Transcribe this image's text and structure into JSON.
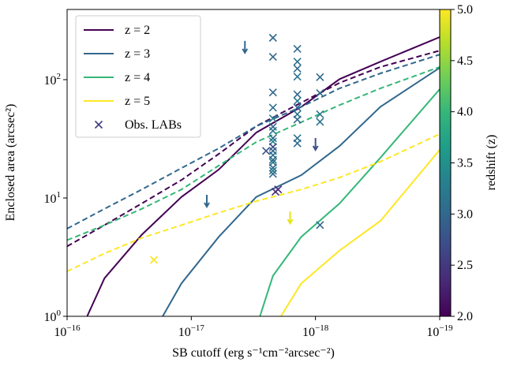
{
  "chart_data": {
    "type": "line",
    "xlabel": "SB cutoff (erg s⁻¹cm⁻²arcsec⁻²)",
    "ylabel": "Enclosed area (arcsec²)",
    "xscale": "log",
    "yscale": "log",
    "xlim": [
      1e-16,
      1e-19
    ],
    "ylim": [
      1,
      392
    ],
    "xticks": [
      {
        "value": 1e-16,
        "label": "10",
        "exponent": "−16"
      },
      {
        "value": 1e-17,
        "label": "10",
        "exponent": "−17"
      },
      {
        "value": 1e-18,
        "label": "10",
        "exponent": "−18"
      },
      {
        "value": 1e-19,
        "label": "10",
        "exponent": "−19"
      }
    ],
    "yticks": [
      {
        "value": 1,
        "label": "10",
        "exponent": "0"
      },
      {
        "value": 10,
        "label": "10",
        "exponent": "1"
      },
      {
        "value": 100,
        "label": "10",
        "exponent": "2"
      }
    ],
    "legend": "upper left",
    "series": [
      {
        "name": "z = 2",
        "color": "#440154",
        "style": "solid",
        "x": [
          6.9e-17,
          5e-17,
          2.5e-17,
          1.2e-17,
          6e-18,
          3e-18,
          1.3e-18,
          6.4e-19,
          3e-19,
          1e-19
        ],
        "values": [
          1,
          2.1,
          4.9,
          10.2,
          17.4,
          35.7,
          59,
          101,
          142,
          229
        ]
      },
      {
        "name": "z = 3",
        "color": "#31688e",
        "style": "solid",
        "x": [
          1.7e-17,
          1.2e-17,
          6e-18,
          3e-18,
          1.3e-18,
          6.4e-19,
          3e-19,
          1e-19
        ],
        "values": [
          1,
          1.9,
          4.7,
          10.2,
          15.6,
          27.5,
          59,
          126
        ]
      },
      {
        "name": "z = 4",
        "color": "#35b779",
        "style": "solid",
        "x": [
          2.8e-18,
          2.2e-18,
          1.3e-18,
          6.4e-19,
          3e-19,
          1e-19
        ],
        "values": [
          1,
          2.2,
          4.7,
          9.0,
          21.9,
          83
        ]
      },
      {
        "name": "z = 5",
        "color": "#fde725",
        "style": "solid",
        "x": [
          1.9e-18,
          1.3e-18,
          6.4e-19,
          3e-19,
          1e-19
        ],
        "values": [
          1,
          1.9,
          3.6,
          6.4,
          25.5
        ]
      },
      {
        "color": "#440154",
        "style": "dashed",
        "x": [
          1e-16,
          5e-17,
          2.5e-17,
          1.2e-17,
          6e-18,
          3e-18,
          1.3e-18,
          6.4e-19,
          3e-19,
          1e-19
        ],
        "values": [
          3.9,
          5.9,
          9.0,
          14.2,
          23.6,
          40.4,
          64,
          94,
          128,
          176
        ]
      },
      {
        "color": "#31688e",
        "style": "dashed",
        "x": [
          1e-16,
          5e-17,
          2.5e-17,
          1.2e-17,
          6e-18,
          3e-18,
          1.3e-18,
          6.4e-19,
          3e-19,
          1e-19
        ],
        "values": [
          5.5,
          8.1,
          11.8,
          17.9,
          26.3,
          40.4,
          59,
          84.5,
          113,
          163
        ]
      },
      {
        "color": "#35b779",
        "style": "dashed",
        "x": [
          1e-16,
          5e-17,
          2.5e-17,
          1.2e-17,
          6e-18,
          3e-18,
          1.3e-18,
          6.4e-19,
          3e-19,
          1e-19
        ],
        "values": [
          4.4,
          5.9,
          8.1,
          11.8,
          18.8,
          29.7,
          43.7,
          61,
          84.5,
          128
        ]
      },
      {
        "color": "#fde725",
        "style": "dashed",
        "x": [
          1e-16,
          5e-17,
          2.5e-17,
          1.2e-17,
          6e-18,
          3e-18,
          1.3e-18,
          6.4e-19,
          3e-19,
          1e-19
        ],
        "values": [
          2.4,
          3.4,
          4.6,
          5.9,
          7.5,
          9.4,
          11.8,
          14.9,
          20.3,
          34.7
        ]
      }
    ],
    "scatter": {
      "name": "Obs. LABs",
      "color": "#3e3a7a",
      "x": [
        2.2e-18,
        2.2e-18,
        2.2e-18,
        2.2e-18,
        2.2e-18,
        2.2e-18,
        2.2e-18,
        2.2e-18,
        2.2e-18,
        2.2e-18,
        2.2e-18,
        2.2e-18,
        2.2e-18,
        2.2e-18,
        2.2e-18,
        2.2e-18,
        2.2e-18,
        1.4e-18,
        1.4e-18,
        1.4e-18,
        1.4e-18,
        1.4e-18,
        1.4e-18,
        1.4e-18,
        1.4e-18,
        1.4e-18,
        1.4e-18,
        1.4e-18,
        9.2e-19,
        9.2e-19,
        9.2e-19,
        9.2e-19,
        9.2e-19,
        2e-17,
        2.5e-18,
        2.1e-18,
        2e-18
      ],
      "values": [
        226,
        156,
        78,
        58,
        47,
        40,
        37,
        32,
        30,
        27,
        25,
        23,
        21,
        20,
        18,
        17,
        16,
        182,
        142,
        124,
        106,
        75,
        66,
        58,
        51,
        46,
        32,
        29,
        105,
        77,
        51,
        44,
        5.9,
        3.0,
        25,
        11.3,
        11.8
      ],
      "colors": [
        "#31688e",
        "#31688e",
        "#31688e",
        "#2c728e",
        "#26828e",
        "#31688e",
        "#2a788e",
        "#31688e",
        "#26828e",
        "#3e4989",
        "#31688e",
        "#2c728e",
        "#31688e",
        "#2a788e",
        "#31688e",
        "#26828e",
        "#31688e",
        "#31688e",
        "#2c728e",
        "#31688e",
        "#2c728e",
        "#31688e",
        "#2a788e",
        "#31688e",
        "#2c728e",
        "#31688e",
        "#2c728e",
        "#31688e",
        "#31688e",
        "#2c728e",
        "#2a788e",
        "#2c728e",
        "#31688e",
        "#f5e61f",
        "#3b528b",
        "#472c7a",
        "#482878"
      ]
    },
    "upper_limits": {
      "x": [
        3.7e-18,
        7.5e-18,
        1.6e-18,
        1e-18
      ],
      "values": [
        188,
        9.4,
        6.8,
        28.4
      ],
      "colors": [
        "#31688e",
        "#31688e",
        "#e7e419",
        "#3b528b"
      ]
    },
    "colorbar": {
      "label": "redshift (z)",
      "lim": [
        2,
        5
      ],
      "colormap": [
        "#440154",
        "#482878",
        "#3e4989",
        "#31688e",
        "#26828e",
        "#1f9e89",
        "#35b779",
        "#6ece58",
        "#b5de2b",
        "#fde725"
      ],
      "ticks": [
        {
          "value": 2.0,
          "label": "2.0"
        },
        {
          "value": 2.5,
          "label": "2.5"
        },
        {
          "value": 3.0,
          "label": "3.0"
        },
        {
          "value": 3.5,
          "label": "3.5"
        },
        {
          "value": 4.0,
          "label": "4.0"
        },
        {
          "value": 4.5,
          "label": "4.5"
        },
        {
          "value": 5.0,
          "label": "5.0"
        }
      ]
    }
  }
}
